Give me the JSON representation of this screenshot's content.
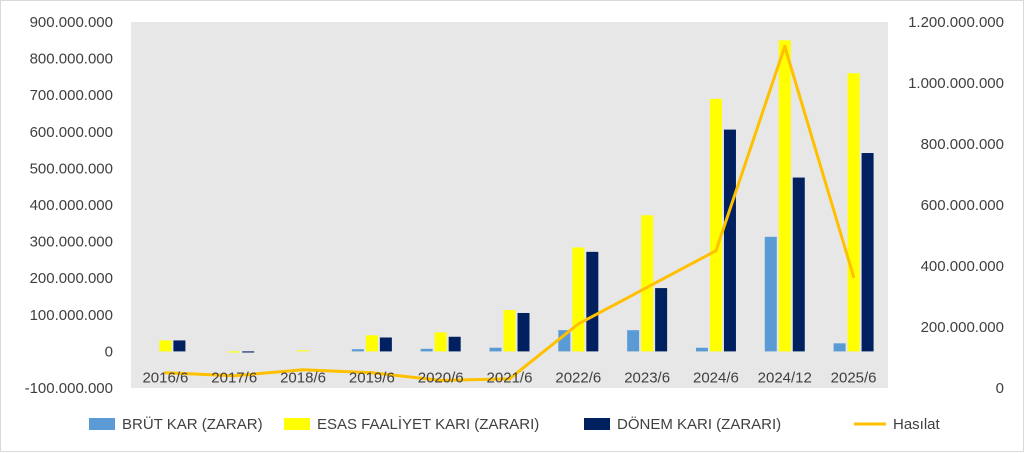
{
  "chart_data": {
    "type": "bar",
    "categories": [
      "2016/6",
      "2017/6",
      "2018/6",
      "2019/6",
      "2020/6",
      "2021/6",
      "2022/6",
      "2023/6",
      "2024/6",
      "2024/12",
      "2025/6"
    ],
    "series": [
      {
        "name": "BRÜT KAR (ZARAR)",
        "kind": "bar",
        "axis": "left",
        "color": "#5b9bd5",
        "values": [
          0,
          0,
          0,
          6000000,
          7000000,
          10000000,
          58000000,
          58000000,
          10000000,
          313000000,
          22000000
        ]
      },
      {
        "name": "ESAS FAALİYET KARI (ZARARI)",
        "kind": "bar",
        "axis": "left",
        "color": "#ffff00",
        "values": [
          30000000,
          -3000000,
          3000000,
          44000000,
          52000000,
          113000000,
          284000000,
          372000000,
          690000000,
          850000000,
          760000000
        ]
      },
      {
        "name": "DÖNEM KARI (ZARARI)",
        "kind": "bar",
        "axis": "left",
        "color": "#002060",
        "values": [
          30000000,
          -3000000,
          0,
          38000000,
          40000000,
          105000000,
          272000000,
          173000000,
          606000000,
          475000000,
          542000000
        ]
      },
      {
        "name": "Hasılat",
        "kind": "line",
        "axis": "right",
        "color": "#ffc000",
        "values": [
          50000000,
          40000000,
          60000000,
          50000000,
          25000000,
          30000000,
          210000000,
          330000000,
          450000000,
          1120000000,
          365000000
        ]
      }
    ],
    "y_left": {
      "min": -100000000,
      "max": 900000000,
      "step": 100000000,
      "tick_labels": [
        "-100.000.000",
        "0",
        "100.000.000",
        "200.000.000",
        "300.000.000",
        "400.000.000",
        "500.000.000",
        "600.000.000",
        "700.000.000",
        "800.000.000",
        "900.000.000"
      ]
    },
    "y_right": {
      "min": 0,
      "max": 1200000000,
      "step": 200000000,
      "tick_labels": [
        "0",
        "200.000.000",
        "400.000.000",
        "600.000.000",
        "800.000.000",
        "1.000.000.000",
        "1.200.000.000"
      ]
    },
    "grid": false,
    "plot_background": "#e7e7e7",
    "legend_position": "bottom"
  }
}
